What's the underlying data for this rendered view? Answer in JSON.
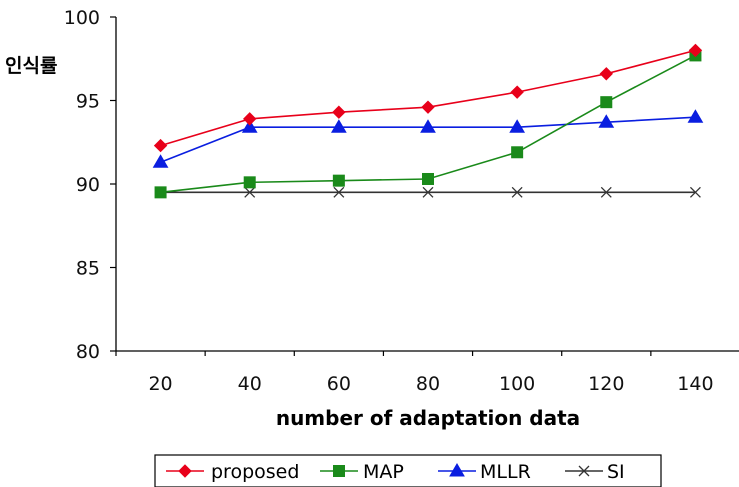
{
  "chart_data": {
    "type": "line",
    "title": "",
    "xlabel": "number of adaptation data",
    "ylabel": "인식률",
    "x": [
      20,
      40,
      60,
      80,
      100,
      120,
      140
    ],
    "ylim": [
      80,
      100
    ],
    "yticks": [
      80,
      85,
      90,
      95,
      100
    ],
    "grid": false,
    "legend_position": "bottom",
    "series": [
      {
        "name": "proposed",
        "color": "#e8001a",
        "marker": "diamond",
        "values": [
          92.3,
          93.9,
          94.3,
          94.6,
          95.5,
          96.6,
          98.0
        ]
      },
      {
        "name": "MAP",
        "color": "#1a8a1a",
        "marker": "square",
        "values": [
          89.5,
          90.1,
          90.2,
          90.3,
          91.9,
          94.9,
          97.7
        ]
      },
      {
        "name": "MLLR",
        "color": "#0a1ee0",
        "marker": "triangle",
        "values": [
          91.3,
          93.4,
          93.4,
          93.4,
          93.4,
          93.7,
          94.0
        ]
      },
      {
        "name": "SI",
        "color": "#333333",
        "marker": "x",
        "values": [
          89.5,
          89.5,
          89.5,
          89.5,
          89.5,
          89.5,
          89.5
        ]
      }
    ]
  }
}
